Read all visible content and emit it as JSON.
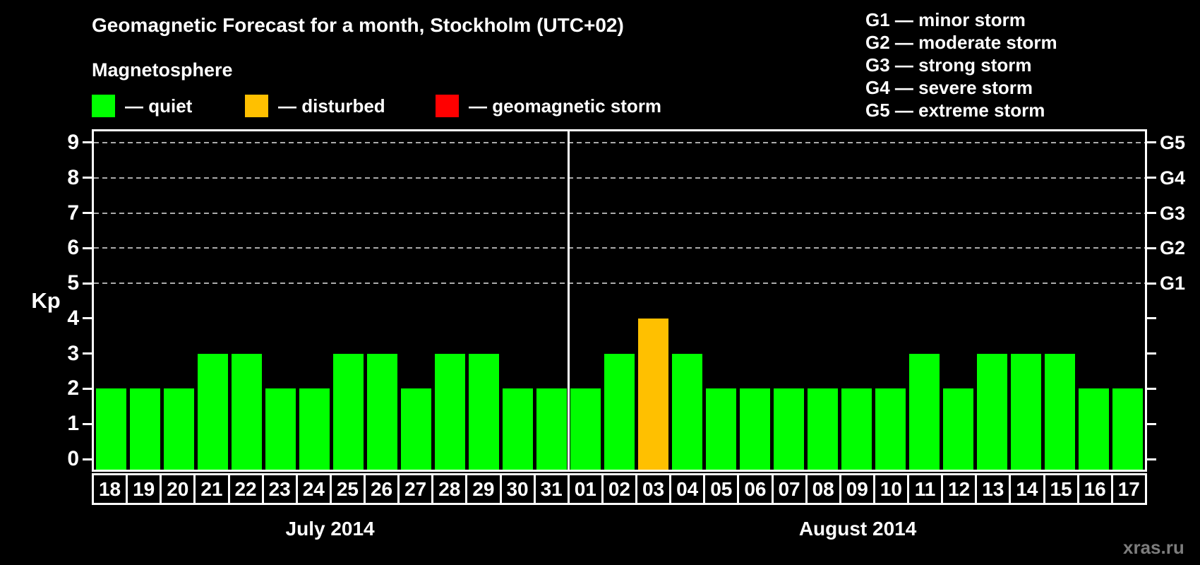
{
  "title": "Geomagnetic Forecast for a month, Stockholm (UTC+02)",
  "magnetosphere": {
    "heading": "Magnetosphere",
    "legend": [
      {
        "status": "quiet",
        "label": "— quiet",
        "color": "#00ff00"
      },
      {
        "status": "disturbed",
        "label": "— disturbed",
        "color": "#ffc000"
      },
      {
        "status": "storm",
        "label": "— geomagnetic storm",
        "color": "#ff0000"
      }
    ]
  },
  "storm_scale": [
    "G1 — minor storm",
    "G2 — moderate storm",
    "G3 — strong storm",
    "G4 — severe storm",
    "G5 — extreme storm"
  ],
  "watermark": "xras.ru",
  "colors": {
    "background": "#000000",
    "frame": "#ffffff",
    "grid": "#aaaaaa",
    "quiet": "#00ff00",
    "disturbed": "#ffc000",
    "storm": "#ff0000",
    "watermark": "#7d7d7d"
  },
  "chart_data": {
    "type": "bar",
    "title": "Geomagnetic Forecast for a month, Stockholm (UTC+02)",
    "ylabel": "Kp",
    "ylim": [
      0,
      9
    ],
    "yticks": [
      0,
      1,
      2,
      3,
      4,
      5,
      6,
      7,
      8,
      9
    ],
    "grid": "dashed horizontal lines at Kp 5-9 only",
    "gridlines_at_kp": [
      5,
      6,
      7,
      8,
      9
    ],
    "right_axis": [
      {
        "kp": 5,
        "label": "G1"
      },
      {
        "kp": 6,
        "label": "G2"
      },
      {
        "kp": 7,
        "label": "G3"
      },
      {
        "kp": 8,
        "label": "G4"
      },
      {
        "kp": 9,
        "label": "G5"
      }
    ],
    "legend_position": "top-left",
    "months": [
      {
        "label": "July 2014",
        "day_count": 14
      },
      {
        "label": "August 2014",
        "day_count": 17
      }
    ],
    "categories": [
      "18",
      "19",
      "20",
      "21",
      "22",
      "23",
      "24",
      "25",
      "26",
      "27",
      "28",
      "29",
      "30",
      "31",
      "01",
      "02",
      "03",
      "04",
      "05",
      "06",
      "07",
      "08",
      "09",
      "10",
      "11",
      "12",
      "13",
      "14",
      "15",
      "16",
      "17"
    ],
    "values": [
      2,
      2,
      2,
      3,
      3,
      2,
      2,
      3,
      3,
      2,
      3,
      3,
      2,
      2,
      2,
      3,
      4,
      3,
      2,
      2,
      2,
      2,
      2,
      2,
      3,
      2,
      3,
      3,
      3,
      2,
      2
    ],
    "statuses": [
      "quiet",
      "quiet",
      "quiet",
      "quiet",
      "quiet",
      "quiet",
      "quiet",
      "quiet",
      "quiet",
      "quiet",
      "quiet",
      "quiet",
      "quiet",
      "quiet",
      "quiet",
      "quiet",
      "disturbed",
      "quiet",
      "quiet",
      "quiet",
      "quiet",
      "quiet",
      "quiet",
      "quiet",
      "quiet",
      "quiet",
      "quiet",
      "quiet",
      "quiet",
      "quiet",
      "quiet"
    ],
    "bar_colors": {
      "quiet": "#00ff00",
      "disturbed": "#ffc000",
      "storm": "#ff0000"
    }
  }
}
